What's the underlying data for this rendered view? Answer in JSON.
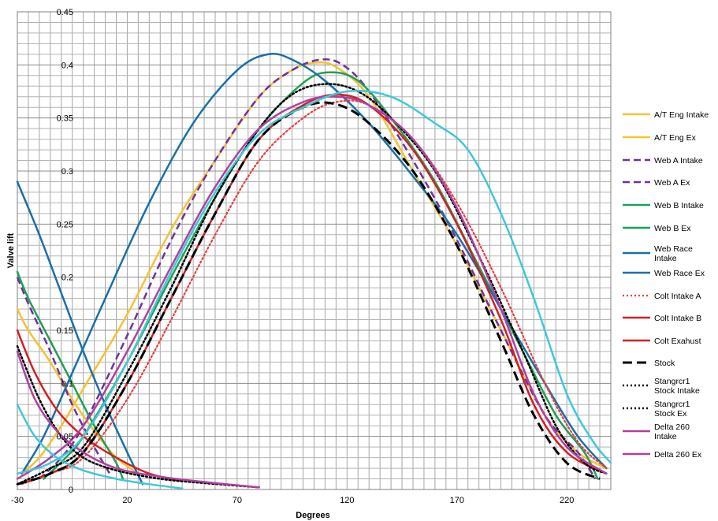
{
  "chart_data": {
    "type": "line",
    "title": "",
    "xlabel": "Degrees",
    "ylabel": "Valve lift",
    "xlim": [
      -30,
      240
    ],
    "ylim": [
      0,
      0.45
    ],
    "x_ticks": [
      -30,
      20,
      70,
      120,
      170,
      220
    ],
    "x_tick_labels": [
      "-30",
      "20",
      "70",
      "120",
      "170",
      "220"
    ],
    "y_ticks": [
      0,
      0.05,
      0.1,
      0.15,
      0.2,
      0.25,
      0.3,
      0.35,
      0.4,
      0.45
    ],
    "y_tick_labels": [
      "0",
      "0.05",
      "0.1",
      "0.15",
      "0.2",
      "0.25",
      "0.3",
      "0.35",
      "0.4",
      "0.45"
    ],
    "grid": true,
    "legend_position": "right",
    "series": [
      {
        "name": "A/T Eng Intake",
        "color": "#f5c232",
        "dash": "solid",
        "width": 2.5,
        "points": [
          [
            -28,
            0.015
          ],
          [
            -20,
            0.03
          ],
          [
            -10,
            0.06
          ],
          [
            0,
            0.095
          ],
          [
            20,
            0.165
          ],
          [
            40,
            0.245
          ],
          [
            60,
            0.31
          ],
          [
            80,
            0.37
          ],
          [
            95,
            0.395
          ],
          [
            105,
            0.402
          ],
          [
            115,
            0.398
          ],
          [
            130,
            0.37
          ],
          [
            150,
            0.3
          ],
          [
            170,
            0.23
          ],
          [
            190,
            0.15
          ],
          [
            210,
            0.07
          ],
          [
            225,
            0.035
          ],
          [
            238,
            0.02
          ]
        ]
      },
      {
        "name": "A/T Eng Ex",
        "color": "#f5c232",
        "dash": "solid",
        "width": 2.5,
        "points": [
          [
            -30,
            0.17
          ],
          [
            -25,
            0.15
          ],
          [
            -15,
            0.12
          ],
          [
            -5,
            0.085
          ],
          [
            5,
            0.055
          ],
          [
            15,
            0.03
          ],
          [
            25,
            0.015
          ]
        ]
      },
      {
        "name": "Web A Intake",
        "color": "#7030a0",
        "dash": "dash",
        "width": 2.5,
        "points": [
          [
            -20,
            0.01
          ],
          [
            -10,
            0.03
          ],
          [
            0,
            0.06
          ],
          [
            20,
            0.145
          ],
          [
            40,
            0.235
          ],
          [
            60,
            0.31
          ],
          [
            80,
            0.37
          ],
          [
            95,
            0.395
          ],
          [
            108,
            0.405
          ],
          [
            118,
            0.4
          ],
          [
            130,
            0.375
          ],
          [
            150,
            0.31
          ],
          [
            170,
            0.235
          ],
          [
            190,
            0.15
          ],
          [
            210,
            0.07
          ],
          [
            225,
            0.035
          ],
          [
            233,
            0.01
          ]
        ]
      },
      {
        "name": "Web A Ex",
        "color": "#7030a0",
        "dash": "dash",
        "width": 2.5,
        "points": [
          [
            -30,
            0.2
          ],
          [
            -25,
            0.175
          ],
          [
            -15,
            0.13
          ],
          [
            -5,
            0.08
          ],
          [
            5,
            0.04
          ],
          [
            12,
            0.015
          ]
        ]
      },
      {
        "name": "Web B Intake",
        "color": "#1fa055",
        "dash": "solid",
        "width": 2.5,
        "points": [
          [
            -18,
            0.01
          ],
          [
            -8,
            0.03
          ],
          [
            0,
            0.05
          ],
          [
            20,
            0.12
          ],
          [
            40,
            0.2
          ],
          [
            60,
            0.275
          ],
          [
            80,
            0.34
          ],
          [
            100,
            0.383
          ],
          [
            112,
            0.393
          ],
          [
            125,
            0.385
          ],
          [
            140,
            0.35
          ],
          [
            160,
            0.29
          ],
          [
            180,
            0.21
          ],
          [
            200,
            0.13
          ],
          [
            215,
            0.07
          ],
          [
            228,
            0.035
          ],
          [
            234,
            0.01
          ]
        ]
      },
      {
        "name": "Web B Ex",
        "color": "#1fa055",
        "dash": "solid",
        "width": 2.5,
        "points": [
          [
            -30,
            0.205
          ],
          [
            -25,
            0.18
          ],
          [
            -15,
            0.14
          ],
          [
            -5,
            0.1
          ],
          [
            5,
            0.06
          ],
          [
            15,
            0.025
          ],
          [
            18,
            0.01
          ]
        ]
      },
      {
        "name": "Web Race Intake",
        "color": "#1a6fa8",
        "dash": "solid",
        "width": 2.5,
        "points": [
          [
            -28,
            0.015
          ],
          [
            -18,
            0.05
          ],
          [
            -5,
            0.11
          ],
          [
            10,
            0.18
          ],
          [
            30,
            0.27
          ],
          [
            50,
            0.345
          ],
          [
            70,
            0.395
          ],
          [
            84,
            0.41
          ],
          [
            95,
            0.405
          ],
          [
            110,
            0.385
          ],
          [
            130,
            0.345
          ],
          [
            150,
            0.295
          ],
          [
            170,
            0.24
          ],
          [
            190,
            0.17
          ],
          [
            210,
            0.1
          ],
          [
            225,
            0.05
          ],
          [
            238,
            0.02
          ]
        ]
      },
      {
        "name": "Web Race Ex",
        "color": "#1a6fa8",
        "dash": "solid",
        "width": 2.5,
        "points": [
          [
            -30,
            0.29
          ],
          [
            -20,
            0.24
          ],
          [
            -10,
            0.185
          ],
          [
            0,
            0.13
          ],
          [
            10,
            0.08
          ],
          [
            20,
            0.035
          ],
          [
            27,
            0.005
          ]
        ]
      },
      {
        "name": "Colt Intake  A",
        "color": "#e84040",
        "dash": "dot",
        "width": 2.2,
        "points": [
          [
            -28,
            0.005
          ],
          [
            -15,
            0.015
          ],
          [
            0,
            0.03
          ],
          [
            20,
            0.085
          ],
          [
            40,
            0.16
          ],
          [
            60,
            0.24
          ],
          [
            80,
            0.31
          ],
          [
            100,
            0.35
          ],
          [
            115,
            0.365
          ],
          [
            130,
            0.362
          ],
          [
            150,
            0.33
          ],
          [
            170,
            0.27
          ],
          [
            190,
            0.19
          ],
          [
            210,
            0.1
          ],
          [
            225,
            0.045
          ],
          [
            238,
            0.02
          ]
        ]
      },
      {
        "name": "Colt Intake  B",
        "color": "#d42020",
        "dash": "solid",
        "width": 2.5,
        "points": [
          [
            -30,
            0.005
          ],
          [
            -15,
            0.015
          ],
          [
            0,
            0.035
          ],
          [
            20,
            0.1
          ],
          [
            40,
            0.18
          ],
          [
            60,
            0.26
          ],
          [
            80,
            0.33
          ],
          [
            100,
            0.362
          ],
          [
            115,
            0.372
          ],
          [
            130,
            0.362
          ],
          [
            150,
            0.32
          ],
          [
            170,
            0.25
          ],
          [
            190,
            0.16
          ],
          [
            205,
            0.08
          ],
          [
            220,
            0.035
          ],
          [
            238,
            0.015
          ]
        ]
      },
      {
        "name": "Colt Exahust",
        "color": "#d42020",
        "dash": "solid",
        "width": 2.5,
        "points": [
          [
            -30,
            0.15
          ],
          [
            -22,
            0.11
          ],
          [
            -12,
            0.075
          ],
          [
            0,
            0.05
          ],
          [
            15,
            0.03
          ],
          [
            30,
            0.015
          ],
          [
            45,
            0.008
          ]
        ]
      },
      {
        "name": "Stock",
        "color": "#000000",
        "dash": "bigdash",
        "width": 3,
        "points": [
          [
            -30,
            0.005
          ],
          [
            -15,
            0.015
          ],
          [
            0,
            0.035
          ],
          [
            20,
            0.1
          ],
          [
            40,
            0.18
          ],
          [
            60,
            0.26
          ],
          [
            80,
            0.33
          ],
          [
            100,
            0.36
          ],
          [
            115,
            0.363
          ],
          [
            130,
            0.345
          ],
          [
            150,
            0.3
          ],
          [
            170,
            0.23
          ],
          [
            190,
            0.14
          ],
          [
            205,
            0.07
          ],
          [
            220,
            0.025
          ],
          [
            235,
            0.01
          ]
        ]
      },
      {
        "name": "Stangrcr1 Stock Intake",
        "color": "#000000",
        "dash": "dot",
        "width": 2.5,
        "points": [
          [
            -30,
            0.005
          ],
          [
            -15,
            0.02
          ],
          [
            0,
            0.04
          ],
          [
            20,
            0.11
          ],
          [
            40,
            0.19
          ],
          [
            60,
            0.275
          ],
          [
            80,
            0.34
          ],
          [
            95,
            0.372
          ],
          [
            110,
            0.382
          ],
          [
            125,
            0.375
          ],
          [
            140,
            0.35
          ],
          [
            160,
            0.3
          ],
          [
            180,
            0.22
          ],
          [
            200,
            0.13
          ],
          [
            215,
            0.06
          ],
          [
            228,
            0.025
          ],
          [
            238,
            0.015
          ]
        ]
      },
      {
        "name": "Stangrcr1 Stock Ex",
        "color": "#000000",
        "dash": "dot",
        "width": 2.5,
        "points": [
          [
            -30,
            0.135
          ],
          [
            -20,
            0.085
          ],
          [
            -10,
            0.05
          ],
          [
            0,
            0.03
          ],
          [
            15,
            0.018
          ],
          [
            35,
            0.01
          ],
          [
            55,
            0.006
          ],
          [
            80,
            0.002
          ]
        ]
      },
      {
        "name": "Delta 260 Intake",
        "color": "#b040a0",
        "dash": "solid",
        "width": 2.5,
        "points": [
          [
            -30,
            0.01
          ],
          [
            -15,
            0.03
          ],
          [
            0,
            0.06
          ],
          [
            20,
            0.13
          ],
          [
            40,
            0.21
          ],
          [
            60,
            0.285
          ],
          [
            80,
            0.34
          ],
          [
            100,
            0.365
          ],
          [
            115,
            0.37
          ],
          [
            130,
            0.362
          ],
          [
            150,
            0.33
          ],
          [
            170,
            0.265
          ],
          [
            190,
            0.17
          ],
          [
            205,
            0.09
          ],
          [
            220,
            0.04
          ],
          [
            238,
            0.015
          ]
        ]
      },
      {
        "name": "Delta 260 Ex",
        "color": "#b040a0",
        "dash": "solid",
        "width": 2.5,
        "points": [
          [
            -30,
            0.13
          ],
          [
            -22,
            0.085
          ],
          [
            -12,
            0.055
          ],
          [
            0,
            0.035
          ],
          [
            15,
            0.02
          ],
          [
            35,
            0.012
          ],
          [
            60,
            0.006
          ],
          [
            80,
            0.002
          ]
        ]
      },
      {
        "name": "",
        "color": "#40c8d8",
        "dash": "solid",
        "width": 2.5,
        "points": [
          [
            -30,
            0.015
          ],
          [
            -15,
            0.025
          ],
          [
            0,
            0.05
          ],
          [
            20,
            0.12
          ],
          [
            40,
            0.205
          ],
          [
            60,
            0.28
          ],
          [
            80,
            0.335
          ],
          [
            100,
            0.36
          ],
          [
            120,
            0.375
          ],
          [
            140,
            0.37
          ],
          [
            160,
            0.345
          ],
          [
            175,
            0.32
          ],
          [
            190,
            0.26
          ],
          [
            205,
            0.18
          ],
          [
            220,
            0.09
          ],
          [
            232,
            0.045
          ],
          [
            240,
            0.025
          ]
        ]
      },
      {
        "name": "",
        "color": "#40c8d8",
        "dash": "solid",
        "width": 2.5,
        "points": [
          [
            -30,
            0.08
          ],
          [
            -22,
            0.05
          ],
          [
            -12,
            0.03
          ],
          [
            0,
            0.018
          ],
          [
            15,
            0.01
          ],
          [
            30,
            0.005
          ],
          [
            45,
            0.001
          ]
        ]
      }
    ]
  }
}
